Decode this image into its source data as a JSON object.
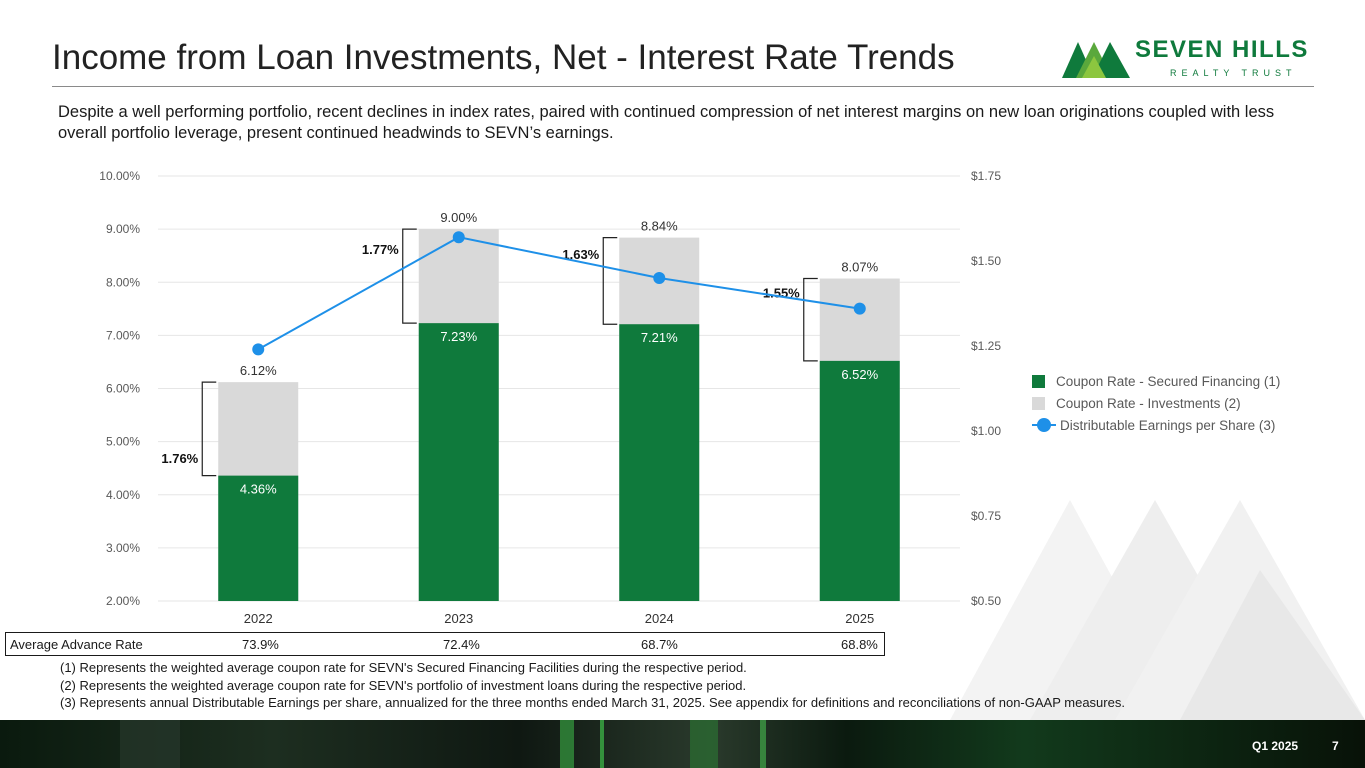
{
  "title": "Income from Loan Investments, Net - Interest Rate Trends",
  "logo": {
    "name": "SEVEN HILLS",
    "tagline": "REALTY TRUST"
  },
  "subtitle": "Despite a well performing portfolio, recent declines in index rates, paired with continued compression of net interest margins on new loan originations coupled with less overall portfolio leverage, present continued headwinds to SEVN’s earnings.",
  "colors": {
    "secured": "#0f7a3c",
    "investments": "#d9d9d9",
    "earnings": "#1e90e8"
  },
  "chart_data": {
    "type": "bar",
    "stacked": true,
    "categories": [
      "2022",
      "2023",
      "2024",
      "2025"
    ],
    "series": [
      {
        "name": "Coupon Rate - Secured Financing (1)",
        "values": [
          4.36,
          7.23,
          7.21,
          6.52
        ],
        "labels": [
          "4.36%",
          "7.23%",
          "7.21%",
          "6.52%"
        ]
      },
      {
        "name": "Coupon Rate - Investments (2)",
        "values": [
          6.12,
          9.0,
          8.84,
          8.07
        ],
        "labels": [
          "6.12%",
          "9.00%",
          "8.84%",
          "8.07%"
        ]
      }
    ],
    "line_series": {
      "name": "Distributable Earnings per Share (3)",
      "values": [
        1.24,
        1.57,
        1.45,
        1.36
      ],
      "axis": "right"
    },
    "spreads": [
      "1.76%",
      "1.77%",
      "1.63%",
      "1.55%"
    ],
    "y_left": {
      "ylim": [
        2,
        10
      ],
      "ticks": [
        "2.00%",
        "3.00%",
        "4.00%",
        "5.00%",
        "6.00%",
        "7.00%",
        "8.00%",
        "9.00%",
        "10.00%"
      ]
    },
    "y_right": {
      "ylim": [
        0.5,
        1.75
      ],
      "ticks": [
        "$0.50",
        "$0.75",
        "$1.00",
        "$1.25",
        "$1.50",
        "$1.75"
      ]
    },
    "legend_position": "right",
    "grid": true
  },
  "advance_rate": {
    "label": "Average Advance Rate",
    "values": [
      "73.9%",
      "72.4%",
      "68.7%",
      "68.8%"
    ]
  },
  "footnotes": [
    "(1) Represents the weighted average coupon rate for SEVN's Secured Financing Facilities during the respective period.",
    "(2) Represents the weighted average coupon rate for SEVN's portfolio of investment loans during the respective period.",
    "(3) Represents annual Distributable Earnings per share, annualized for the three months ended March 31, 2025. See appendix for definitions and reconciliations of non-GAAP measures."
  ],
  "footer": {
    "period": "Q1 2025",
    "page": "7"
  }
}
